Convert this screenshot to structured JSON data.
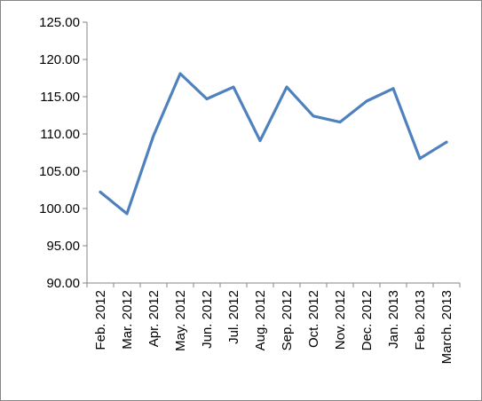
{
  "chart_data": {
    "type": "line",
    "title": "",
    "xlabel": "",
    "ylabel": "",
    "categories": [
      "Feb. 2012",
      "Mar. 2012",
      "Apr. 2012",
      "May. 2012",
      "Jun. 2012",
      "Jul. 2012",
      "Aug. 2012",
      "Sep. 2012",
      "Oct. 2012",
      "Nov. 2012",
      "Dec. 2012",
      "Jan. 2013",
      "Feb. 2013",
      "March. 2013"
    ],
    "series": [
      {
        "values": [
          102.2,
          99.3,
          109.8,
          118.1,
          114.7,
          116.3,
          109.1,
          116.3,
          112.4,
          111.6,
          114.4,
          116.1,
          106.7,
          108.9
        ]
      }
    ],
    "ylim": [
      90,
      125
    ],
    "yticks": [
      "90.00",
      "95.00",
      "100.00",
      "105.00",
      "110.00",
      "115.00",
      "120.00",
      "125.00"
    ],
    "grid": false,
    "legend": "none",
    "line_color": "#4F81BD",
    "axis_color": "#868686"
  }
}
